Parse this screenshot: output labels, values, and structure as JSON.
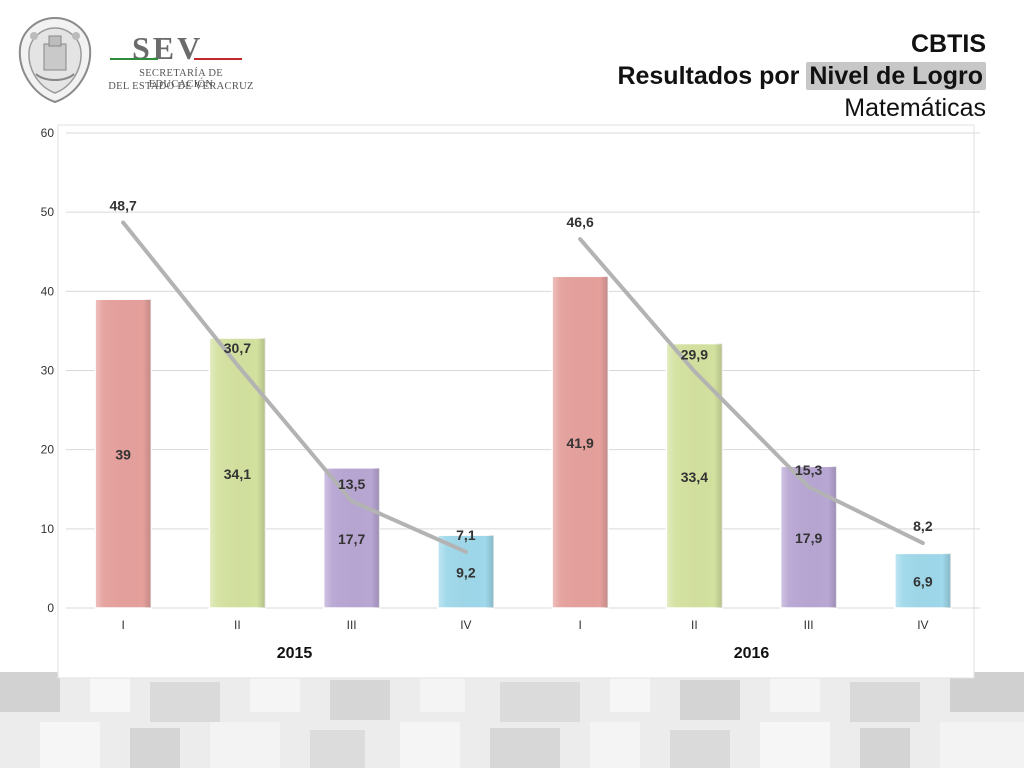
{
  "header": {
    "title_line1": "CBTIS",
    "title_line2_prefix": "Resultados por ",
    "title_line2_highlight": "Nivel de Logro",
    "title_line3": "Matemáticas"
  },
  "logo": {
    "name": "SEV",
    "line1": "SECRETARÍA DE EDUCACIÓN",
    "line2": "DEL ESTADO DE VERACRUZ"
  },
  "colors": {
    "I": "#e5a09c",
    "II": "#d3e19f",
    "III": "#b8a6d3",
    "IV": "#9ed8ea",
    "line": "#b3b3b3",
    "grid": "#d9d9d9",
    "axis_text": "#333333"
  },
  "chart_data": {
    "type": "bar",
    "title": "",
    "xlabel": "",
    "ylabel": "",
    "ylim": [
      0,
      60
    ],
    "yticks": [
      0,
      10,
      20,
      30,
      40,
      50,
      60
    ],
    "grid": true,
    "legend": "none",
    "groups": [
      {
        "name": "2015",
        "categories": [
          "I",
          "II",
          "III",
          "IV"
        ],
        "bar_values": [
          39,
          34.1,
          17.7,
          9.2
        ],
        "bar_labels": [
          "39",
          "34,1",
          "17,7",
          "9,2"
        ],
        "line_values": [
          48.7,
          30.7,
          13.5,
          7.1
        ],
        "line_labels": [
          "48,7",
          "30,7",
          "13,5",
          "7,1"
        ]
      },
      {
        "name": "2016",
        "categories": [
          "I",
          "II",
          "III",
          "IV"
        ],
        "bar_values": [
          41.9,
          33.4,
          17.9,
          6.9
        ],
        "bar_labels": [
          "41,9",
          "33,4",
          "17,9",
          "6,9"
        ],
        "line_values": [
          46.6,
          29.9,
          15.3,
          8.2
        ],
        "line_labels": [
          "46,6",
          "29,9",
          "15,3",
          "8,2"
        ]
      }
    ]
  }
}
